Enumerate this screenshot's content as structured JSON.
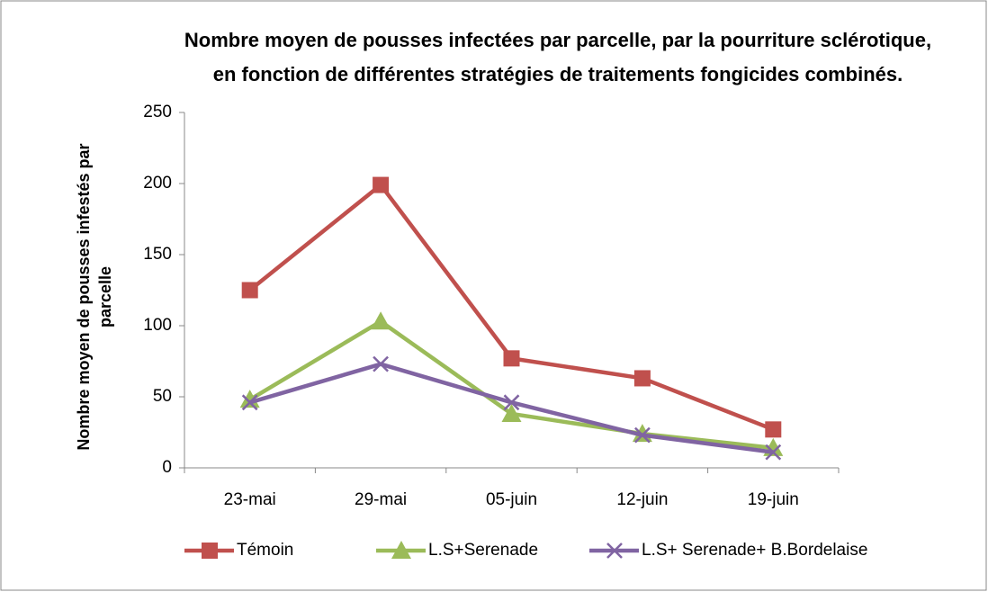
{
  "chart_data": {
    "type": "line",
    "title": "Nombre moyen de pousses infectées par parcelle, par la pourriture sclérotique, en fonction de différentes stratégies de traitements fongicides combinés.",
    "y_label": "Nombre moyen de pousses infestés par parcelle",
    "categories": [
      "23-mai",
      "29-mai",
      "05-juin",
      "12-juin",
      "19-juin"
    ],
    "series": [
      {
        "name": "Témoin",
        "color": "#c0504d",
        "marker": "square",
        "values": [
          125,
          199,
          77,
          63,
          27
        ]
      },
      {
        "name": "L.S+Serenade",
        "color": "#9bbb59",
        "marker": "triangle",
        "values": [
          48,
          103,
          38,
          24,
          14
        ]
      },
      {
        "name": "L.S+ Serenade+ B.Bordelaise",
        "color": "#8064a2",
        "marker": "x",
        "values": [
          46,
          73,
          46,
          23,
          11
        ]
      }
    ],
    "ylim": [
      0,
      250
    ],
    "yticks": [
      0,
      50,
      100,
      150,
      200,
      250
    ],
    "grid": false,
    "legend": "bottom"
  }
}
